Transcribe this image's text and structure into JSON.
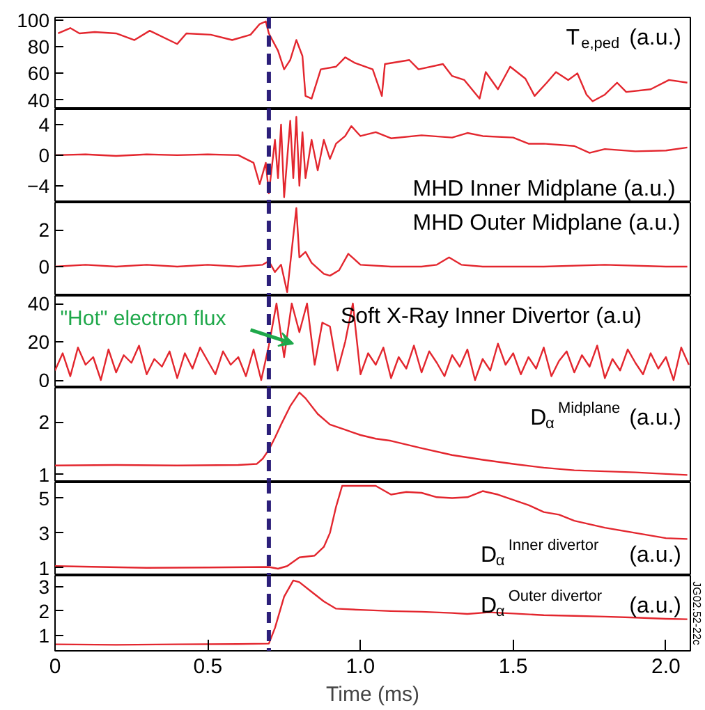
{
  "chart_data": [
    {
      "type": "line",
      "xlim": [
        0,
        2.08
      ],
      "ylim": [
        33,
        102
      ],
      "yticks": [
        40,
        60,
        80,
        100
      ],
      "tick_labels": "y",
      "ref_lines": [
        {
          "axis": "x",
          "value": 0.7,
          "color": "#2c1f7a",
          "line_style": "dashed"
        }
      ],
      "series": [
        {
          "name": "T$_{e,ped}$ (a.u.)",
          "color": "#e3262e",
          "x": [
            0.01,
            0.05,
            0.08,
            0.13,
            0.2,
            0.26,
            0.31,
            0.4,
            0.43,
            0.51,
            0.58,
            0.64,
            0.67,
            0.69,
            0.7,
            0.73,
            0.75,
            0.77,
            0.79,
            0.81,
            0.82,
            0.84,
            0.87,
            0.92,
            0.95,
            0.98,
            1.04,
            1.07,
            1.08,
            1.16,
            1.19,
            1.27,
            1.3,
            1.34,
            1.39,
            1.41,
            1.45,
            1.49,
            1.54,
            1.57,
            1.61,
            1.64,
            1.68,
            1.71,
            1.74,
            1.76,
            1.8,
            1.84,
            1.87,
            1.95,
            2.01,
            2.07
          ],
          "values": [
            90,
            94,
            90,
            91,
            90,
            85,
            92,
            82,
            90,
            89,
            85,
            89,
            97,
            99,
            90,
            77,
            63,
            70,
            85,
            73,
            43,
            41,
            63,
            65,
            72,
            68,
            63,
            43,
            67,
            70,
            63,
            67,
            58,
            55,
            41,
            61,
            48,
            65,
            56,
            43,
            53,
            61,
            55,
            60,
            44,
            39,
            44,
            53,
            46,
            48,
            55,
            53
          ]
        }
      ]
    },
    {
      "type": "line",
      "xlim": [
        0,
        2.08
      ],
      "ylim": [
        -6.2,
        6
      ],
      "yticks": [
        {
          "value": -4,
          "label": "−4"
        },
        0,
        4
      ],
      "tick_labels": "y",
      "ref_lines": [
        {
          "axis": "x",
          "value": 0.7,
          "color": "#2c1f7a",
          "line_style": "dashed"
        }
      ],
      "series": [
        {
          "name": "MHD Inner Midplane (a.u.)",
          "color": "#e3262e",
          "x": [
            0,
            0.1,
            0.2,
            0.3,
            0.4,
            0.5,
            0.6,
            0.65,
            0.67,
            0.69,
            0.7,
            0.72,
            0.73,
            0.74,
            0.75,
            0.77,
            0.78,
            0.79,
            0.8,
            0.81,
            0.82,
            0.84,
            0.86,
            0.88,
            0.9,
            0.92,
            0.95,
            0.97,
            1.0,
            1.05,
            1.1,
            1.2,
            1.3,
            1.35,
            1.4,
            1.5,
            1.55,
            1.6,
            1.7,
            1.75,
            1.8,
            1.9,
            2.0,
            2.07
          ],
          "values": [
            0,
            0.1,
            -0.1,
            0.1,
            0,
            0.1,
            0,
            -1,
            -3.8,
            -1,
            -5,
            2,
            -3,
            4,
            -5.5,
            4.5,
            -3,
            5,
            -4,
            3,
            -3,
            2,
            -2,
            2,
            -0.5,
            1.5,
            2.5,
            3.8,
            2.5,
            3,
            2.2,
            2.6,
            2.3,
            2.9,
            2.5,
            2.3,
            1.5,
            1.5,
            1.2,
            0.3,
            0.8,
            0.5,
            0.6,
            1
          ]
        }
      ]
    },
    {
      "type": "line",
      "xlim": [
        0,
        2.08
      ],
      "ylim": [
        -1.6,
        3.5
      ],
      "yticks": [
        0,
        2
      ],
      "tick_labels": "y",
      "ref_lines": [
        {
          "axis": "x",
          "value": 0.7,
          "color": "#2c1f7a",
          "line_style": "dashed"
        }
      ],
      "series": [
        {
          "name": "MHD Outer Midplane (a.u.)",
          "color": "#e3262e",
          "x": [
            0,
            0.1,
            0.2,
            0.3,
            0.4,
            0.5,
            0.6,
            0.68,
            0.7,
            0.72,
            0.74,
            0.76,
            0.79,
            0.8,
            0.82,
            0.84,
            0.88,
            0.9,
            0.93,
            0.96,
            0.98,
            1.0,
            1.1,
            1.2,
            1.25,
            1.29,
            1.33,
            1.4,
            1.6,
            1.8,
            2.0,
            2.07
          ],
          "values": [
            0,
            0.1,
            0,
            0.1,
            0,
            0.1,
            0,
            0.1,
            0.3,
            -0.3,
            0.1,
            -1.4,
            3.2,
            0.5,
            0.8,
            0.2,
            -0.4,
            -0.5,
            -0.2,
            0.7,
            0.4,
            0.1,
            0,
            0,
            0.1,
            0.5,
            0.1,
            0,
            0,
            0.1,
            0,
            0
          ]
        }
      ]
    },
    {
      "type": "line",
      "xlim": [
        0,
        2.08
      ],
      "ylim": [
        -4,
        44
      ],
      "yticks": [
        0,
        20,
        40
      ],
      "tick_labels": "y",
      "ref_lines": [
        {
          "axis": "x",
          "value": 0.7,
          "color": "#2c1f7a",
          "line_style": "dashed"
        }
      ],
      "annotations": [
        {
          "text": "\"Hot\" electron flux",
          "x": 0.78,
          "y": 19
        }
      ],
      "series": [
        {
          "name": "Soft X-Ray Inner Divertor (a.u)",
          "color": "#e3262e",
          "x": [
            0,
            0.025,
            0.05,
            0.075,
            0.1,
            0.125,
            0.15,
            0.175,
            0.2,
            0.225,
            0.25,
            0.275,
            0.3,
            0.325,
            0.35,
            0.375,
            0.4,
            0.425,
            0.45,
            0.475,
            0.5,
            0.525,
            0.55,
            0.575,
            0.6,
            0.625,
            0.65,
            0.675,
            0.7,
            0.725,
            0.75,
            0.775,
            0.8,
            0.825,
            0.85,
            0.875,
            0.9,
            0.925,
            0.95,
            0.975,
            1.0,
            1.025,
            1.05,
            1.075,
            1.1,
            1.125,
            1.15,
            1.175,
            1.2,
            1.225,
            1.25,
            1.275,
            1.3,
            1.325,
            1.35,
            1.375,
            1.4,
            1.425,
            1.45,
            1.475,
            1.5,
            1.525,
            1.55,
            1.575,
            1.6,
            1.625,
            1.65,
            1.675,
            1.7,
            1.725,
            1.75,
            1.775,
            1.8,
            1.825,
            1.85,
            1.875,
            1.9,
            1.925,
            1.95,
            1.975,
            2.0,
            2.025,
            2.05,
            2.075
          ],
          "values": [
            5,
            14,
            2,
            17,
            8,
            12,
            0,
            16,
            4,
            13,
            9,
            18,
            3,
            11,
            7,
            15,
            1,
            14,
            6,
            17,
            10,
            3,
            15,
            8,
            12,
            2,
            16,
            0,
            18,
            40,
            12,
            40,
            25,
            40,
            8,
            30,
            28,
            5,
            20,
            40,
            3,
            14,
            8,
            17,
            1,
            12,
            6,
            18,
            4,
            15,
            9,
            2,
            13,
            7,
            16,
            0,
            11,
            5,
            19,
            8,
            14,
            3,
            12,
            6,
            17,
            2,
            10,
            15,
            4,
            13,
            7,
            18,
            1,
            11,
            5,
            16,
            9,
            3,
            14,
            6,
            12,
            0,
            17,
            8
          ]
        }
      ]
    },
    {
      "type": "line",
      "xlim": [
        0,
        2.08
      ],
      "ylim": [
        0.85,
        2.65
      ],
      "yticks": [
        1,
        2
      ],
      "tick_labels": "y",
      "ref_lines": [
        {
          "axis": "x",
          "value": 0.7,
          "color": "#2c1f7a",
          "line_style": "dashed"
        }
      ],
      "series": [
        {
          "name": "D$_{α}$$^{Midplane}$ (a.u.)",
          "color": "#e3262e",
          "x": [
            0,
            0.2,
            0.4,
            0.6,
            0.66,
            0.68,
            0.7,
            0.72,
            0.74,
            0.77,
            0.8,
            0.82,
            0.86,
            0.9,
            0.95,
            1.0,
            1.05,
            1.1,
            1.2,
            1.3,
            1.4,
            1.5,
            1.6,
            1.7,
            1.8,
            1.9,
            2.0,
            2.07
          ],
          "values": [
            1.17,
            1.18,
            1.17,
            1.18,
            1.2,
            1.3,
            1.47,
            1.7,
            1.95,
            2.3,
            2.56,
            2.45,
            2.15,
            1.95,
            1.85,
            1.75,
            1.68,
            1.64,
            1.5,
            1.37,
            1.28,
            1.2,
            1.13,
            1.08,
            1.06,
            1.04,
            1.01,
            0.99
          ]
        }
      ]
    },
    {
      "type": "line",
      "xlim": [
        0,
        2.08
      ],
      "ylim": [
        0.55,
        5.9
      ],
      "yticks": [
        1,
        3,
        5
      ],
      "tick_labels": "y",
      "ref_lines": [
        {
          "axis": "x",
          "value": 0.7,
          "color": "#2c1f7a",
          "line_style": "dashed"
        }
      ],
      "series": [
        {
          "name": "D$_{α}$$^{Inner divertor}$ (a.u.)",
          "color": "#e3262e",
          "x": [
            0,
            0.15,
            0.3,
            0.5,
            0.7,
            0.73,
            0.76,
            0.8,
            0.85,
            0.88,
            0.9,
            0.92,
            0.94,
            1.05,
            1.08,
            1.1,
            1.15,
            1.2,
            1.25,
            1.3,
            1.35,
            1.4,
            1.45,
            1.5,
            1.55,
            1.6,
            1.65,
            1.7,
            1.8,
            1.9,
            2.0,
            2.07
          ],
          "values": [
            1.1,
            1.05,
            1.0,
            1.02,
            1.05,
            0.95,
            1.1,
            1.6,
            1.7,
            2.2,
            3.0,
            4.5,
            5.7,
            5.7,
            5.4,
            5.2,
            5.35,
            5.3,
            5.05,
            5.0,
            5.05,
            5.4,
            5.2,
            4.9,
            4.6,
            4.2,
            4.05,
            3.7,
            3.3,
            3.0,
            2.7,
            2.65
          ]
        }
      ]
    },
    {
      "type": "line",
      "xlim": [
        0,
        2.08
      ],
      "ylim": [
        0.35,
        3.47
      ],
      "yticks": [
        1,
        2,
        3
      ],
      "xticks": [
        0,
        0.5,
        {
          "value": 1,
          "label": "1.0"
        },
        1.5,
        {
          "value": 2,
          "label": "2.0"
        }
      ],
      "xlabel": "Time (ms)",
      "ref_lines": [
        {
          "axis": "x",
          "value": 0.7,
          "color": "#2c1f7a",
          "line_style": "dashed"
        }
      ],
      "annotations": [
        "JG02.52-22c"
      ],
      "series": [
        {
          "name": "D$_{α}$$^{Outer divertor}$ (a.u.)",
          "color": "#e3262e",
          "x": [
            0,
            0.2,
            0.4,
            0.6,
            0.7,
            0.72,
            0.75,
            0.78,
            0.8,
            0.84,
            0.88,
            0.92,
            1.0,
            1.1,
            1.2,
            1.3,
            1.35,
            1.42,
            1.5,
            1.6,
            1.7,
            1.8,
            1.9,
            2.0,
            2.07
          ],
          "values": [
            0.62,
            0.6,
            0.62,
            0.63,
            0.65,
            1.3,
            2.6,
            3.27,
            3.2,
            2.8,
            2.4,
            2.1,
            2.05,
            2.0,
            1.97,
            1.92,
            1.88,
            1.95,
            1.9,
            1.83,
            1.8,
            1.77,
            1.73,
            1.68,
            1.66
          ]
        }
      ]
    }
  ]
}
